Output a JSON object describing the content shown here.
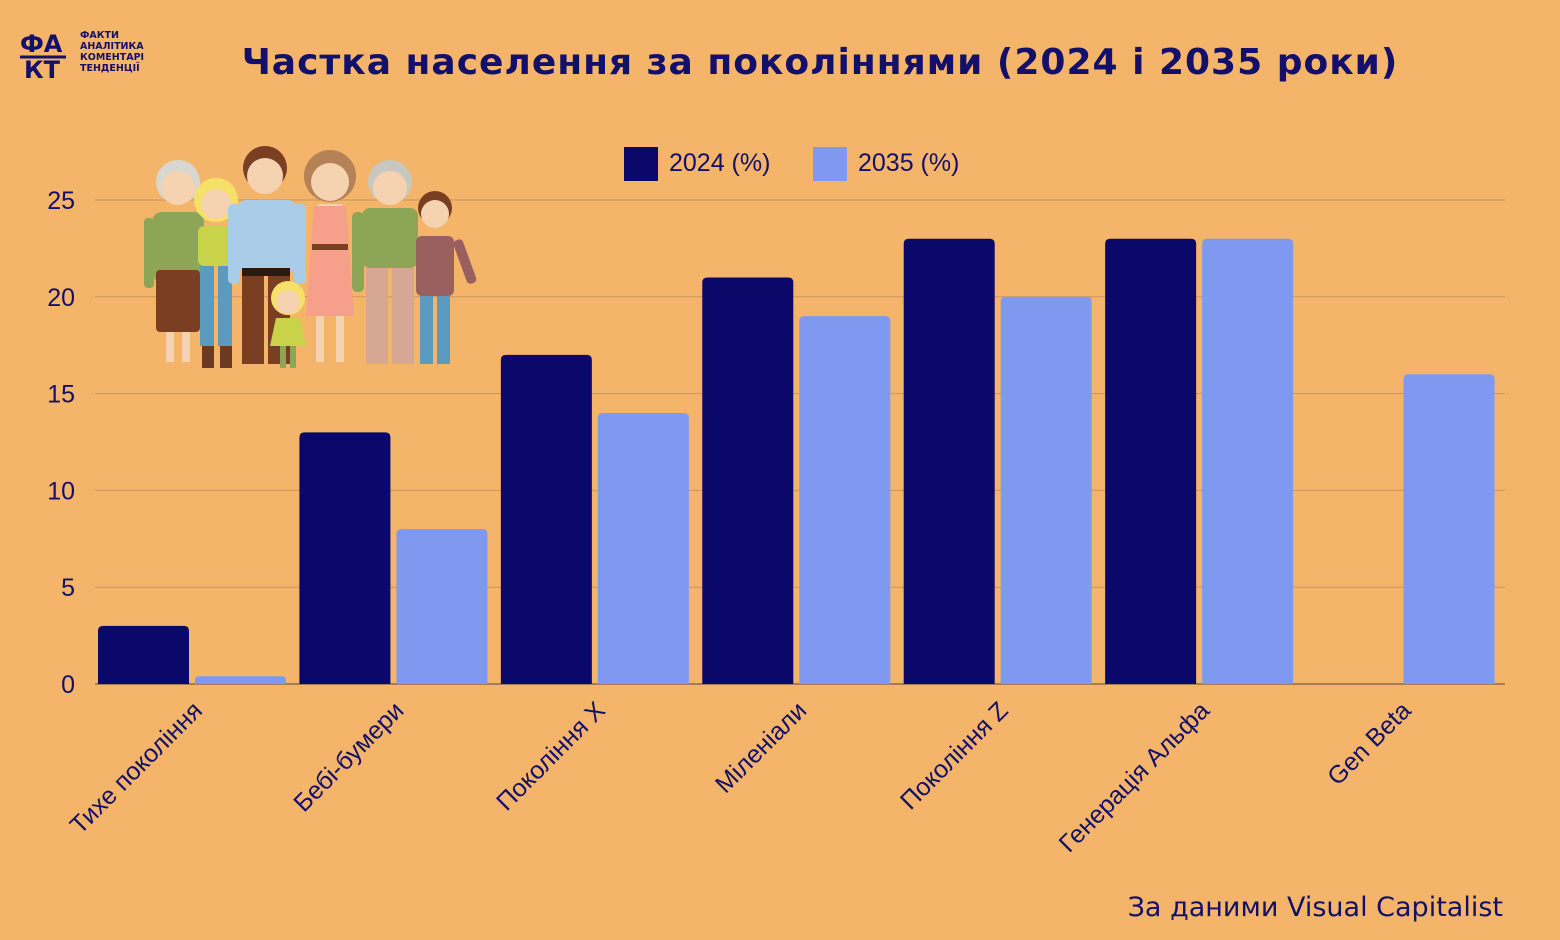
{
  "header": {
    "title": "Частка населення за поколіннями (2024 і 2035 роки)",
    "logo_mark": "ФАКТ",
    "logo_words": [
      "ФАКТИ",
      "АНАЛІТИКА",
      "КОМЕНТАРІ",
      "ТЕНДЕНЦІЇ"
    ]
  },
  "footer": {
    "source": "За даними Visual Capitalist"
  },
  "colors": {
    "background": "#F4B469",
    "series_2024": "#0A0868",
    "series_2035": "#8099F0",
    "grid": "#C99560",
    "text": "#12106A"
  },
  "chart_data": {
    "type": "bar",
    "title": "Частка населення за поколіннями (2024 і 2035 роки)",
    "categories": [
      "Тихе покоління",
      "Бебі-бумери",
      "Покоління X",
      "Міленіали",
      "Покоління Z",
      "Генерація Альфа",
      "Gen Beta"
    ],
    "series": [
      {
        "name": "2024 (%)",
        "color": "#0A0868",
        "values": [
          3,
          13,
          17,
          21,
          23,
          23,
          0
        ]
      },
      {
        "name": "2035 (%)",
        "color": "#8099F0",
        "values": [
          0.4,
          8,
          14,
          19,
          20,
          23,
          16
        ]
      }
    ],
    "yticks": [
      0,
      5,
      10,
      15,
      20,
      25
    ],
    "ylim": [
      0,
      27.5
    ],
    "grid": true,
    "legend": "top-center"
  }
}
